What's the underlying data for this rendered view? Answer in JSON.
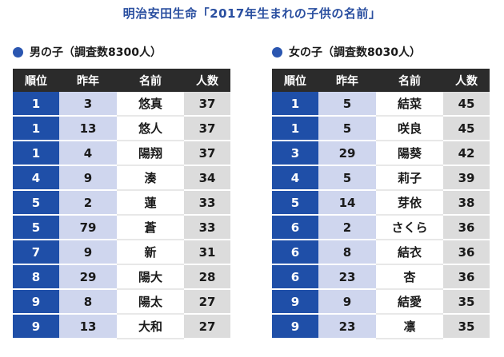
{
  "title": "明治安田生命「2017年生まれの子供の名前」",
  "chart_data": [
    {
      "type": "table",
      "title": "男の子（調査数8300人）",
      "columns": [
        "順位",
        "昨年",
        "名前",
        "人数"
      ],
      "rows": [
        [
          "1",
          "3",
          "悠真",
          "37"
        ],
        [
          "1",
          "13",
          "悠人",
          "37"
        ],
        [
          "1",
          "4",
          "陽翔",
          "37"
        ],
        [
          "4",
          "9",
          "湊",
          "34"
        ],
        [
          "5",
          "2",
          "蓮",
          "33"
        ],
        [
          "5",
          "79",
          "蒼",
          "33"
        ],
        [
          "7",
          "9",
          "新",
          "31"
        ],
        [
          "8",
          "29",
          "陽大",
          "28"
        ],
        [
          "9",
          "8",
          "陽太",
          "27"
        ],
        [
          "9",
          "13",
          "大和",
          "27"
        ]
      ]
    },
    {
      "type": "table",
      "title": "女の子（調査数8030人）",
      "columns": [
        "順位",
        "昨年",
        "名前",
        "人数"
      ],
      "rows": [
        [
          "1",
          "5",
          "結菜",
          "45"
        ],
        [
          "1",
          "5",
          "咲良",
          "45"
        ],
        [
          "3",
          "29",
          "陽葵",
          "42"
        ],
        [
          "4",
          "5",
          "莉子",
          "39"
        ],
        [
          "5",
          "14",
          "芽依",
          "38"
        ],
        [
          "6",
          "2",
          "さくら",
          "36"
        ],
        [
          "6",
          "8",
          "結衣",
          "36"
        ],
        [
          "6",
          "23",
          "杏",
          "36"
        ],
        [
          "9",
          "9",
          "結愛",
          "35"
        ],
        [
          "9",
          "23",
          "凛",
          "35"
        ]
      ]
    }
  ],
  "colors": {
    "accent_blue": "#1f4fa8",
    "header_dark": "#2b2b2b",
    "prev_bg": "#cfd6ee",
    "count_bg": "#dcdcdc"
  }
}
